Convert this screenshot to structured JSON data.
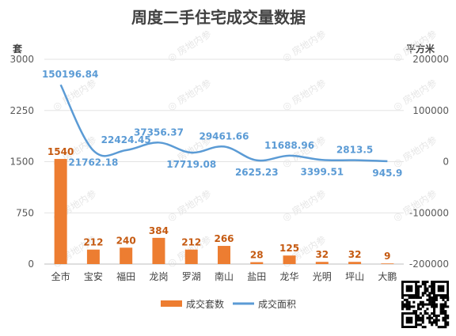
{
  "chart_data": {
    "type": "bar",
    "title": "周度二手住宅成交量数据",
    "y_left_unit": "套",
    "y_right_unit": "平方米",
    "y_left_ticks": [
      "3000",
      "2250",
      "1500",
      "750",
      "0"
    ],
    "y_right_ticks": [
      "200000",
      "100000",
      "0",
      "-100000",
      "-200000"
    ],
    "ylim_left": [
      0,
      3000
    ],
    "ylim_right": [
      -200000,
      200000
    ],
    "categories": [
      "全市",
      "宝安",
      "福田",
      "龙岗",
      "罗湖",
      "南山",
      "盐田",
      "龙华",
      "光明",
      "坪山",
      "大鹏"
    ],
    "series": [
      {
        "name": "成交套数",
        "type": "bar",
        "axis": "left",
        "color": "#ED7D31",
        "values": [
          1540,
          212,
          240,
          384,
          212,
          266,
          28,
          125,
          32,
          32,
          9
        ],
        "labels": [
          "1540",
          "212",
          "240",
          "384",
          "212",
          "266",
          "28",
          "125",
          "32",
          "32",
          "9"
        ]
      },
      {
        "name": "成交面积",
        "type": "line",
        "axis": "right",
        "color": "#5B9BD5",
        "values": [
          150196.84,
          21762.18,
          22424.45,
          37356.37,
          17719.08,
          29461.66,
          2625.23,
          11688.96,
          3399.51,
          2813.5,
          945.9
        ],
        "labels": [
          "150196.84",
          "21762.18",
          "22424.45",
          "37356.37",
          "17719.08",
          "29461.66",
          "2625.23",
          "11688.96",
          "3399.51",
          "2813.5",
          "945.9"
        ]
      }
    ],
    "grid": true,
    "legend_position": "bottom"
  },
  "watermark": "房地内参"
}
